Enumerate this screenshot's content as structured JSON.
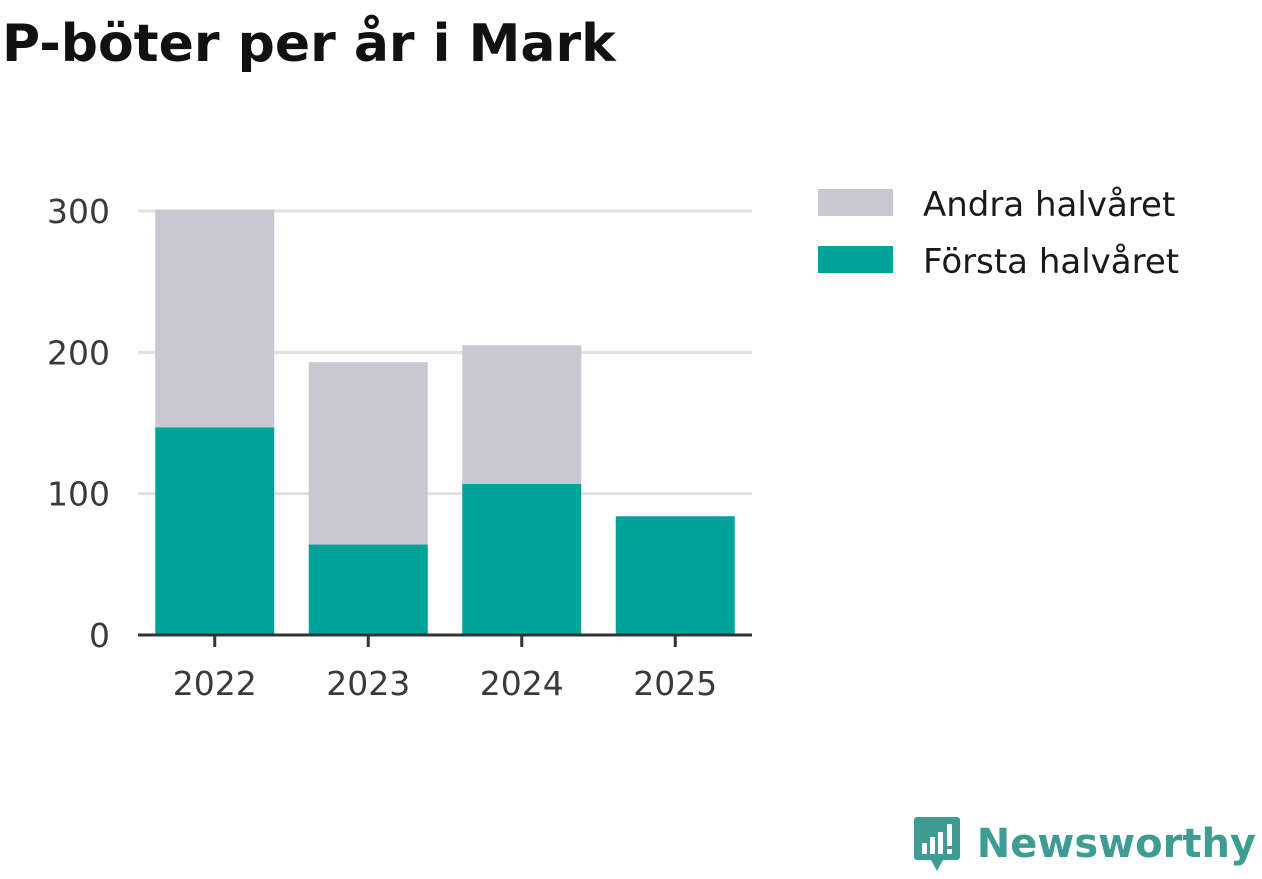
{
  "title": "P-böter per år i Mark",
  "brand": {
    "name": "Newsworthy",
    "icon": "newsworthy-logo-icon",
    "color": "#3e9c95"
  },
  "chart_data": {
    "type": "bar",
    "stacked": true,
    "title": "P-böter per år i Mark",
    "xlabel": "",
    "ylabel": "",
    "categories": [
      "2022",
      "2023",
      "2024",
      "2025"
    ],
    "series": [
      {
        "name": "Första halvåret",
        "values": [
          147,
          64,
          107,
          84
        ],
        "color": "#00a39a"
      },
      {
        "name": "Andra halvåret",
        "values": [
          154,
          129,
          98,
          0
        ],
        "color": "#c8c7d2"
      }
    ],
    "legend_order": [
      "Andra halvåret",
      "Första halvåret"
    ],
    "ylim": [
      0,
      300
    ],
    "yticks": [
      0,
      100,
      200,
      300
    ],
    "grid": true,
    "legend_position": "right"
  }
}
